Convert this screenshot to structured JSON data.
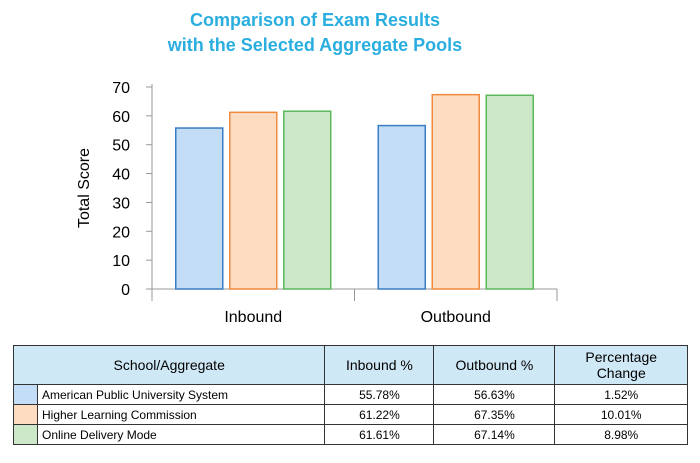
{
  "title_line1": "Comparison of Exam Results",
  "title_line2": "with the Selected Aggregate Pools",
  "chart_data": {
    "type": "bar",
    "categories": [
      "Inbound",
      "Outbound"
    ],
    "series": [
      {
        "name": "American Public University System",
        "values": [
          55.78,
          56.63
        ],
        "fill": "#c2ddf5",
        "stroke": "#3b7dc4"
      },
      {
        "name": "Higher Learning Commission",
        "values": [
          61.22,
          67.35
        ],
        "fill": "#fddcc2",
        "stroke": "#f08a3c"
      },
      {
        "name": "Online Delivery Mode",
        "values": [
          61.61,
          67.14
        ],
        "fill": "#cde8c8",
        "stroke": "#5cb85c"
      }
    ],
    "ylabel": "Total Score",
    "xlabel": "",
    "ylim": [
      0,
      70
    ],
    "yticks": [
      0,
      10,
      20,
      30,
      40,
      50,
      60,
      70
    ],
    "grid": false,
    "legend": "table below chart"
  },
  "table": {
    "headers": [
      "School/Aggregate",
      "Inbound %",
      "Outbound %",
      "Percentage Change"
    ],
    "rows": [
      {
        "name": "American Public University System",
        "inbound": "55.78%",
        "outbound": "56.63%",
        "change": "1.52%",
        "color": "#c2ddf5"
      },
      {
        "name": "Higher Learning Commission",
        "inbound": "61.22%",
        "outbound": "67.35%",
        "change": "10.01%",
        "color": "#fddcc2"
      },
      {
        "name": "Online Delivery Mode",
        "inbound": "61.61%",
        "outbound": "67.14%",
        "change": "8.98%",
        "color": "#cde8c8"
      }
    ]
  }
}
